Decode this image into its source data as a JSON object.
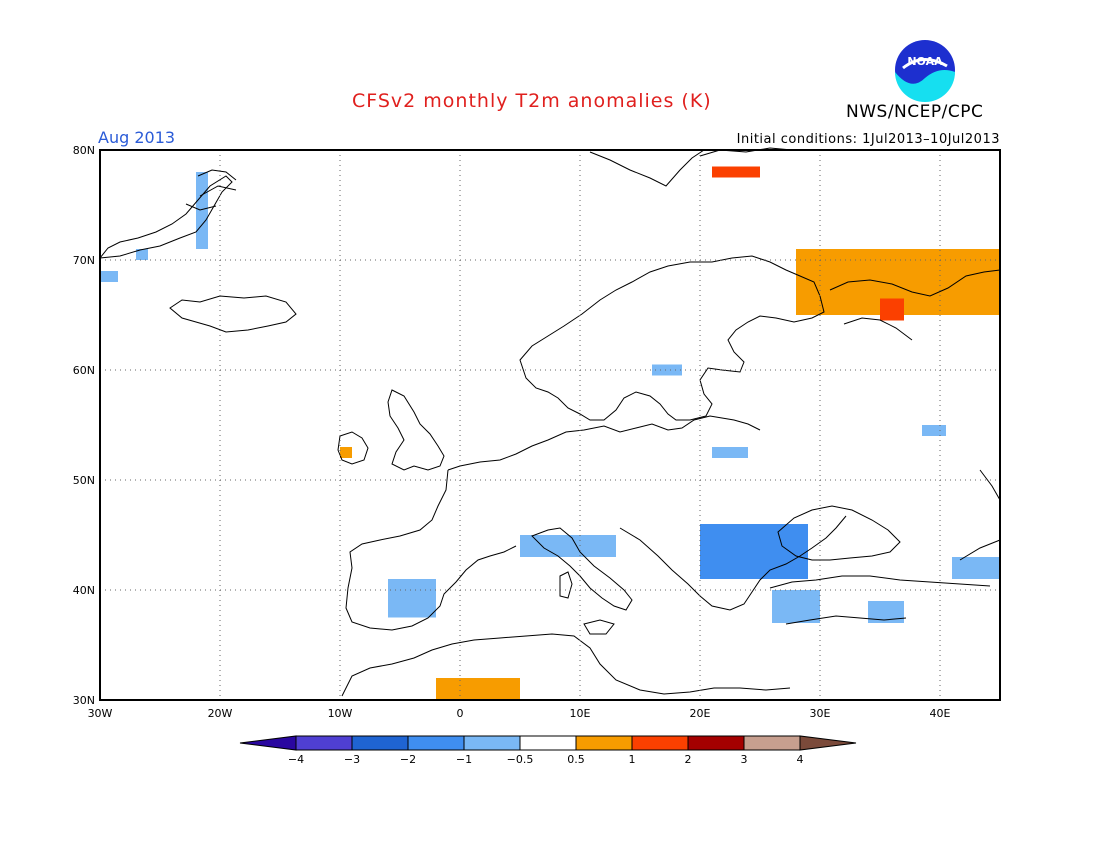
{
  "title": "CFSv2 monthly T2m anomalies (K)",
  "period": "Aug 2013",
  "initial_conditions": "Initial conditions: 1Jul2013–10Jul2013",
  "agency": "NWS/NCEP/CPC",
  "logo": {
    "text": "NOAA",
    "icon": "noaa-logo-icon"
  },
  "colors": {
    "title": "#e0201e",
    "period": "#2a5bd7",
    "coast": "#000000"
  },
  "map": {
    "projection": "equirectangular",
    "lon_range": [
      -30,
      45
    ],
    "lat_range": [
      30,
      80
    ],
    "grid": "dotted",
    "lon_ticks": [
      {
        "value": -30,
        "label": "30W"
      },
      {
        "value": -20,
        "label": "20W"
      },
      {
        "value": -10,
        "label": "10W"
      },
      {
        "value": 0,
        "label": "0"
      },
      {
        "value": 10,
        "label": "10E"
      },
      {
        "value": 20,
        "label": "20E"
      },
      {
        "value": 30,
        "label": "30E"
      },
      {
        "value": 40,
        "label": "40E"
      }
    ],
    "lat_ticks": [
      {
        "value": 30,
        "label": "30N"
      },
      {
        "value": 40,
        "label": "40N"
      },
      {
        "value": 50,
        "label": "50N"
      },
      {
        "value": 60,
        "label": "60N"
      },
      {
        "value": 70,
        "label": "70N"
      },
      {
        "value": 80,
        "label": "80N"
      }
    ]
  },
  "colorbar": {
    "bins": [
      {
        "from": null,
        "to": -4,
        "color": "#2a07a0"
      },
      {
        "from": -4,
        "to": -3,
        "color": "#4f3fd2"
      },
      {
        "from": -3,
        "to": -2,
        "color": "#1f64d2"
      },
      {
        "from": -2,
        "to": -1,
        "color": "#3f8ef0"
      },
      {
        "from": -1,
        "to": -0.5,
        "color": "#7ab8f5"
      },
      {
        "from": -0.5,
        "to": 0.5,
        "color": "#ffffff"
      },
      {
        "from": 0.5,
        "to": 1,
        "color": "#f79c00"
      },
      {
        "from": 1,
        "to": 2,
        "color": "#fb4000"
      },
      {
        "from": 2,
        "to": 3,
        "color": "#a40000"
      },
      {
        "from": 3,
        "to": 4,
        "color": "#c79f8f"
      },
      {
        "from": 4,
        "to": null,
        "color": "#7b4a3a"
      }
    ],
    "labels": [
      "−4",
      "−3",
      "−2",
      "−1",
      "−0.5",
      "0.5",
      "1",
      "2",
      "3",
      "4"
    ]
  },
  "anomaly_regions": [
    {
      "name": "greenland-se",
      "anomaly": -1.0,
      "lon": [
        -27,
        -26
      ],
      "lat": [
        70,
        71
      ]
    },
    {
      "name": "greenland-e",
      "anomaly": -1.0,
      "lon": [
        -22,
        -21
      ],
      "lat": [
        71,
        78
      ]
    },
    {
      "name": "greenland-sw",
      "anomaly": -1.0,
      "lon": [
        -30,
        -28.5
      ],
      "lat": [
        68,
        69
      ]
    },
    {
      "name": "ireland",
      "anomaly": 0.8,
      "lon": [
        -10,
        -9
      ],
      "lat": [
        52,
        53
      ]
    },
    {
      "name": "svalbard-east",
      "anomaly": 1.5,
      "lon": [
        21,
        25
      ],
      "lat": [
        77.5,
        78.5
      ]
    },
    {
      "name": "kola-arctic",
      "anomaly": 0.8,
      "lon": [
        28,
        45
      ],
      "lat": [
        65,
        71
      ]
    },
    {
      "name": "kola-arctic-core",
      "anomaly": 1.5,
      "lon": [
        35,
        37
      ],
      "lat": [
        64.5,
        66.5
      ]
    },
    {
      "name": "finland-sweden",
      "anomaly": -1.0,
      "lon": [
        16,
        18.5
      ],
      "lat": [
        59.5,
        60.5
      ]
    },
    {
      "name": "ukraine",
      "anomaly": -1.0,
      "lon": [
        21,
        24
      ],
      "lat": [
        52,
        53
      ]
    },
    {
      "name": "russia-south",
      "anomaly": -1.0,
      "lon": [
        38.5,
        40.5
      ],
      "lat": [
        54,
        55
      ]
    },
    {
      "name": "iberia",
      "anomaly": -1.0,
      "lon": [
        -6,
        -2
      ],
      "lat": [
        37.5,
        41
      ]
    },
    {
      "name": "southern-france",
      "anomaly": -1.0,
      "lon": [
        5,
        13
      ],
      "lat": [
        43,
        45
      ]
    },
    {
      "name": "balkans",
      "anomaly": -1.2,
      "lon": [
        20,
        29
      ],
      "lat": [
        41,
        46
      ]
    },
    {
      "name": "balkans-core",
      "anomaly": -2.0,
      "lon": [
        22,
        25
      ],
      "lat": [
        42,
        44
      ]
    },
    {
      "name": "turkey-west",
      "anomaly": -1.0,
      "lon": [
        26,
        30
      ],
      "lat": [
        37,
        40
      ]
    },
    {
      "name": "turkey-east",
      "anomaly": -1.0,
      "lon": [
        34,
        37
      ],
      "lat": [
        37,
        39
      ]
    },
    {
      "name": "caspian-west",
      "anomaly": -1.0,
      "lon": [
        41,
        45
      ],
      "lat": [
        41,
        43
      ]
    },
    {
      "name": "north-africa",
      "anomaly": 0.8,
      "lon": [
        -2,
        5
      ],
      "lat": [
        30,
        32
      ]
    }
  ]
}
